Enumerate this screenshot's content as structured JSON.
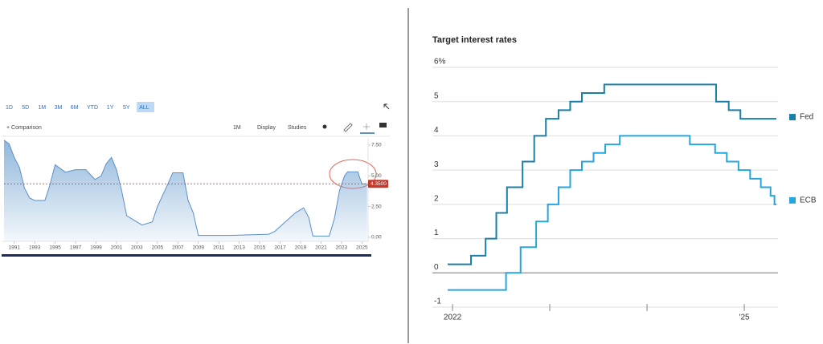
{
  "toolbar": {
    "ranges": [
      "1D",
      "5D",
      "1M",
      "3M",
      "6M",
      "YTD",
      "1Y",
      "5Y",
      "ALL"
    ],
    "active": 8,
    "comparison": "+ Comparison",
    "interval": "1M",
    "display": "Display",
    "studies": "Studies"
  },
  "chart_data": [
    {
      "type": "area",
      "color": "#6b9fd0",
      "x": [
        1990,
        1990.5,
        1991,
        1991.5,
        1992,
        1992.5,
        1993,
        1994,
        1994.5,
        1995,
        1996,
        1997,
        1998,
        1998.9,
        1999.5,
        2000,
        2000.5,
        2001,
        2001.5,
        2002,
        2003,
        2003.5,
        2004.5,
        2005,
        2006,
        2006.5,
        2007.5,
        2008,
        2008.5,
        2009,
        2012,
        2015.9,
        2016.5,
        2017.5,
        2018.5,
        2019.3,
        2019.8,
        2020.2,
        2021.8,
        2022.3,
        2022.8,
        2023.3,
        2023.6,
        2024.6,
        2024.8,
        2025,
        2025.5
      ],
      "values": [
        7.9,
        7.6,
        6.5,
        5.7,
        4.0,
        3.2,
        3.0,
        3.0,
        4.3,
        5.9,
        5.3,
        5.5,
        5.5,
        4.7,
        5.0,
        6.0,
        6.5,
        5.5,
        3.8,
        1.75,
        1.25,
        1.0,
        1.25,
        2.5,
        4.3,
        5.25,
        5.25,
        3.0,
        2.0,
        0.15,
        0.15,
        0.25,
        0.5,
        1.25,
        2.0,
        2.4,
        1.6,
        0.1,
        0.1,
        1.5,
        3.8,
        5.0,
        5.33,
        5.33,
        4.8,
        4.35,
        4.35
      ],
      "xlim": [
        1990,
        2025.6
      ],
      "xticks": [
        1991,
        1993,
        1995,
        1997,
        1999,
        2001,
        2003,
        2005,
        2007,
        2009,
        2011,
        2013,
        2015,
        2017,
        2019,
        2021,
        2023,
        2025
      ],
      "ylim": [
        -0.33,
        8.02
      ],
      "yticks": [
        {
          "value": 0,
          "label": "0.00"
        },
        {
          "value": 2.5,
          "label": "2.50"
        },
        {
          "value": 5,
          "label": "5.00"
        },
        {
          "value": 7.5,
          "label": "7.50"
        }
      ],
      "reference": {
        "value": 4.35,
        "label": "4.3500",
        "color": "#c0392b"
      }
    },
    {
      "type": "step",
      "title": "Target interest rates",
      "series": [
        {
          "name": "Fed",
          "color": "#1a7fa8",
          "x": [
            2021.95,
            2022.19,
            2022.34,
            2022.45,
            2022.56,
            2022.72,
            2022.84,
            2022.96,
            2023.09,
            2023.21,
            2023.33,
            2023.56,
            2024.71,
            2024.84,
            2024.96
          ],
          "values": [
            0.25,
            0.5,
            1.0,
            1.75,
            2.5,
            3.25,
            4.0,
            4.5,
            4.75,
            5.0,
            5.25,
            5.5,
            5.0,
            4.75,
            4.5
          ]
        },
        {
          "name": "ECB",
          "color": "#27a6dd",
          "x": [
            2021.95,
            2022.55,
            2022.7,
            2022.86,
            2022.98,
            2023.09,
            2023.21,
            2023.33,
            2023.45,
            2023.57,
            2023.72,
            2024.44,
            2024.7,
            2024.82,
            2024.94,
            2025.06,
            2025.17,
            2025.27,
            2025.31
          ],
          "values": [
            -0.5,
            0.0,
            0.75,
            1.5,
            2.0,
            2.5,
            3.0,
            3.25,
            3.5,
            3.75,
            4.0,
            3.75,
            3.5,
            3.25,
            3.0,
            2.75,
            2.5,
            2.25,
            2.0
          ]
        }
      ],
      "xlim": [
        2021.95,
        2025.33
      ],
      "xticks": [
        2022,
        {
          "value": 2025,
          "label": "'25"
        }
      ],
      "xminor_ticks": [
        2023,
        2024
      ],
      "ylim": [
        -1,
        6
      ],
      "yticks": [
        -1,
        0,
        1,
        2,
        3,
        4,
        5,
        {
          "value": 6,
          "label": "6%"
        }
      ],
      "grid": true
    }
  ]
}
